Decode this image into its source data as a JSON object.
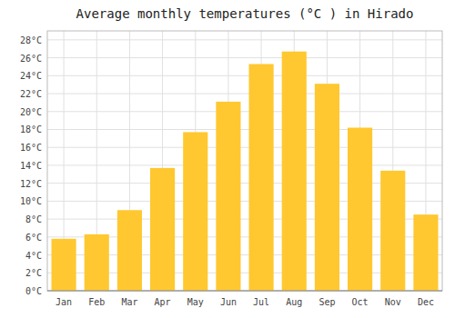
{
  "chart_data": {
    "type": "bar",
    "title": "Average monthly temperatures (°C ) in Hirado",
    "categories": [
      "Jan",
      "Feb",
      "Mar",
      "Apr",
      "May",
      "Jun",
      "Jul",
      "Aug",
      "Sep",
      "Oct",
      "Nov",
      "Dec"
    ],
    "values": [
      5.8,
      6.3,
      9.0,
      13.7,
      17.7,
      21.1,
      25.3,
      26.7,
      23.1,
      18.2,
      13.4,
      8.5
    ],
    "color": "#FFC830",
    "ylim": [
      0,
      29
    ],
    "yticks": [
      {
        "value": 0,
        "label": "0°C"
      },
      {
        "value": 2,
        "label": "2°C"
      },
      {
        "value": 4,
        "label": "4°C"
      },
      {
        "value": 6,
        "label": "6°C"
      },
      {
        "value": 8,
        "label": "8°C"
      },
      {
        "value": 10,
        "label": "10°C"
      },
      {
        "value": 12,
        "label": "12°C"
      },
      {
        "value": 14,
        "label": "14°C"
      },
      {
        "value": 16,
        "label": "16°C"
      },
      {
        "value": 18,
        "label": "18°C"
      },
      {
        "value": 20,
        "label": "20°C"
      },
      {
        "value": 22,
        "label": "22°C"
      },
      {
        "value": 24,
        "label": "24°C"
      },
      {
        "value": 26,
        "label": "26°C"
      },
      {
        "value": 28,
        "label": "28°C"
      }
    ],
    "grid": true
  }
}
